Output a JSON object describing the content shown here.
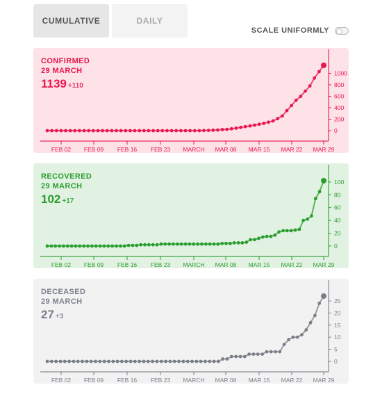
{
  "tabs": [
    {
      "label": "CUMULATIVE",
      "active": true
    },
    {
      "label": "DAILY",
      "active": false
    }
  ],
  "scale_toggle": {
    "label": "SCALE UNIFORMLY",
    "on": false
  },
  "chart_data": [
    {
      "type": "line",
      "name": "confirmed",
      "label": "CONFIRMED",
      "date_label": "29 MARCH",
      "value_label": "1139",
      "delta_label": "+110",
      "color": "#e8174f",
      "background": "#fde2e7",
      "x_start": "Jan 27",
      "x_end": "Mar 29",
      "x_tick_labels": [
        "FEB 02",
        "FEB 09",
        "FEB 16",
        "FEB 23",
        "MARCH",
        "MAR 08",
        "MAR 15",
        "MAR 22",
        "MAR 29"
      ],
      "y_ticks": [
        0,
        200,
        400,
        600,
        800,
        1000
      ],
      "ylim": [
        0,
        1139
      ],
      "values": [
        0,
        0,
        0,
        0,
        0,
        0,
        0,
        0,
        0,
        0,
        0,
        0,
        0,
        0,
        0,
        0,
        0,
        0,
        0,
        0,
        0,
        0,
        0,
        0,
        0,
        0,
        0,
        0,
        0,
        0,
        0,
        0,
        0,
        0,
        3,
        5,
        9,
        11,
        19,
        23,
        33,
        44,
        57,
        70,
        83,
        97,
        111,
        127,
        148,
        170,
        210,
        256,
        349,
        437,
        530,
        597,
        690,
        779,
        917,
        1029,
        1139
      ]
    },
    {
      "type": "line",
      "name": "recovered",
      "label": "RECOVERED",
      "date_label": "29 MARCH",
      "value_label": "102",
      "delta_label": "+17",
      "color": "#2a9d2f",
      "background": "#e2f2e2",
      "x_start": "Jan 27",
      "x_end": "Mar 29",
      "x_tick_labels": [
        "FEB 02",
        "FEB 09",
        "FEB 16",
        "FEB 23",
        "MARCH",
        "MAR 08",
        "MAR 15",
        "MAR 22",
        "MAR 29"
      ],
      "y_ticks": [
        0,
        20,
        40,
        60,
        80,
        100
      ],
      "ylim": [
        0,
        102
      ],
      "values": [
        0,
        0,
        0,
        0,
        0,
        0,
        0,
        0,
        0,
        0,
        0,
        0,
        0,
        0,
        0,
        0,
        0,
        0,
        0,
        0,
        1,
        1,
        1,
        2,
        2,
        2,
        2,
        2,
        3,
        3,
        3,
        3,
        3,
        3,
        3,
        3,
        3,
        3,
        3,
        3,
        3,
        3,
        3,
        4,
        4,
        4,
        5,
        5,
        5,
        6,
        10,
        10,
        12,
        14,
        15,
        15,
        17,
        22,
        24,
        24,
        24,
        25,
        26,
        40,
        42,
        47,
        74,
        85,
        102
      ]
    },
    {
      "type": "line",
      "name": "deceased",
      "label": "DECEASED",
      "date_label": "29 MARCH",
      "value_label": "27",
      "delta_label": "+3",
      "color": "#7b7f89",
      "background": "#f2f2f3",
      "x_start": "Jan 27",
      "x_end": "Mar 29",
      "x_tick_labels": [
        "FEB 02",
        "FEB 09",
        "FEB 16",
        "FEB 23",
        "MARCH",
        "MAR 08",
        "MAR 15",
        "MAR 22",
        "MAR 29"
      ],
      "y_ticks": [
        0,
        5,
        10,
        15,
        20,
        25
      ],
      "ylim": [
        0,
        27
      ],
      "values": [
        0,
        0,
        0,
        0,
        0,
        0,
        0,
        0,
        0,
        0,
        0,
        0,
        0,
        0,
        0,
        0,
        0,
        0,
        0,
        0,
        0,
        0,
        0,
        0,
        0,
        0,
        0,
        0,
        0,
        0,
        0,
        0,
        0,
        0,
        0,
        0,
        0,
        0,
        0,
        0,
        1,
        1,
        2,
        2,
        2,
        2,
        3,
        3,
        3,
        3,
        4,
        4,
        4,
        4,
        7,
        9,
        10,
        10,
        11,
        13,
        16,
        19,
        24,
        27
      ]
    }
  ]
}
